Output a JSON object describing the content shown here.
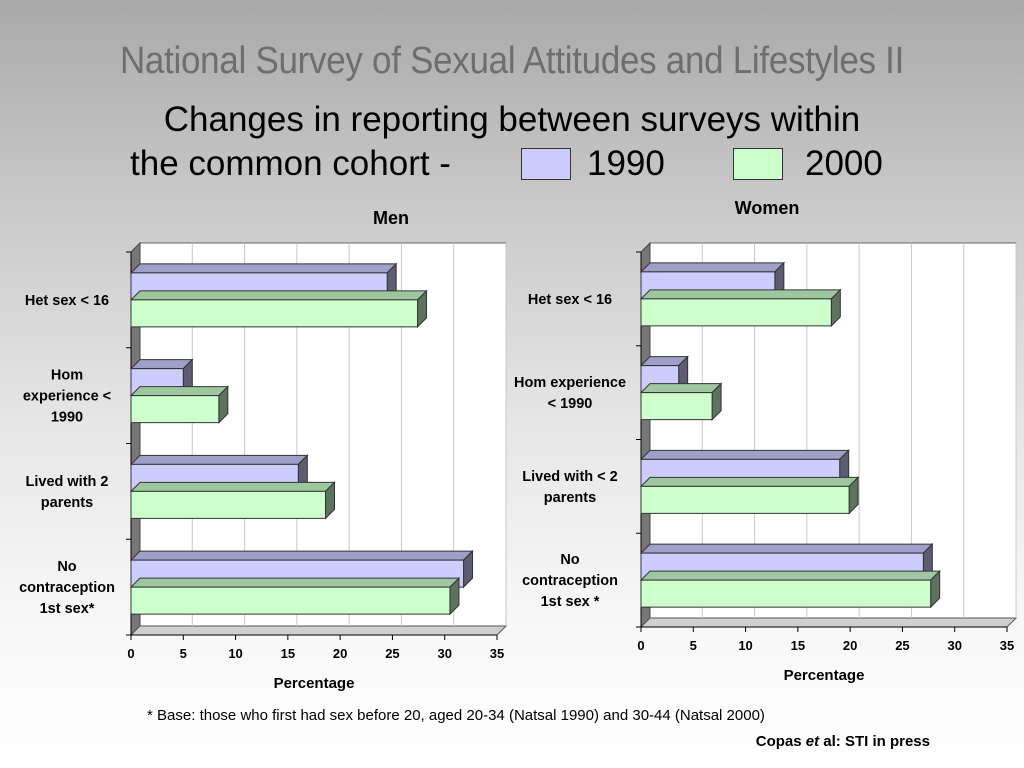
{
  "title": "National Survey of Sexual Attitudes and Lifestyles II",
  "subtitle_line1": "Changes in reporting between surveys within",
  "subtitle_line2_prefix": "the common cohort -",
  "legend": [
    {
      "label": "1990",
      "color": "#ccccff"
    },
    {
      "label": "2000",
      "color": "#ccffcc"
    }
  ],
  "footnote": "* Base: those who first had sex before 20, aged 20-34 (Natsal 1990) and 30-44 (Natsal 2000)",
  "citation": {
    "author": "Copas ",
    "etal": "et",
    "rest": " al:  STI in press"
  },
  "chart_data": [
    {
      "type": "bar",
      "orientation": "horizontal",
      "title": "Men",
      "xlabel": "Percentage",
      "xlim": [
        0,
        35
      ],
      "xticks": [
        0,
        5,
        10,
        15,
        20,
        25,
        30,
        35
      ],
      "grid": "vertical",
      "categories": [
        [
          "Het sex < 16"
        ],
        [
          "Hom",
          "experience <",
          "1990"
        ],
        [
          "Lived with 2",
          "parents"
        ],
        [
          "No",
          "contraception",
          "1st sex*"
        ]
      ],
      "series": [
        {
          "name": "1990",
          "values": [
            24.5,
            5,
            16,
            31.8
          ]
        },
        {
          "name": "2000",
          "values": [
            27.4,
            8.4,
            18.6,
            30.5
          ]
        }
      ]
    },
    {
      "type": "bar",
      "orientation": "horizontal",
      "title": "Women",
      "xlabel": "Percentage",
      "xlim": [
        0,
        35
      ],
      "xticks": [
        0,
        5,
        10,
        15,
        20,
        25,
        30,
        35
      ],
      "grid": "vertical",
      "categories": [
        [
          "Het sex < 16"
        ],
        [
          "Hom experience",
          "< 1990"
        ],
        [
          "Lived with < 2",
          "parents"
        ],
        [
          "No",
          "contraception",
          "1st sex *"
        ]
      ],
      "series": [
        {
          "name": "1990",
          "values": [
            12.8,
            3.6,
            19,
            27
          ]
        },
        {
          "name": "2000",
          "values": [
            18.2,
            6.8,
            19.9,
            27.7
          ]
        }
      ]
    }
  ]
}
